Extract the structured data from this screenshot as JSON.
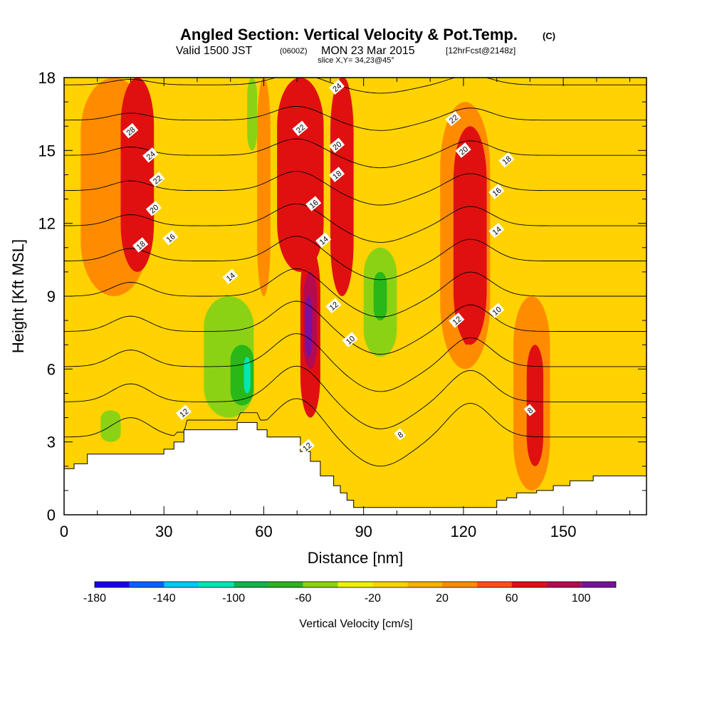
{
  "title": {
    "main": "Angled Section: Vertical Velocity & Pot.Temp.",
    "units_tag": "(C)",
    "valid_prefix": "Valid 1500 JST",
    "valid_z": "(0600Z)",
    "valid_date": "MON 23 Mar 2015",
    "forecast": "[12hrFcst@2148z]",
    "slice": "slice X,Y= 34,23@45°"
  },
  "chart_data": {
    "type": "heatmap",
    "xlabel": "Distance [nm]",
    "ylabel": "Height [Kft MSL]",
    "xlim": [
      0,
      175
    ],
    "ylim": [
      0,
      18
    ],
    "x_ticks": [
      0,
      30,
      60,
      90,
      120,
      150
    ],
    "y_ticks": [
      0,
      3,
      6,
      9,
      12,
      15,
      18
    ],
    "colorbar": {
      "label": "Vertical Velocity [cm/s]",
      "tick_labels": [
        "-180",
        "-140",
        "-100",
        "-60",
        "-20",
        "20",
        "60",
        "100"
      ],
      "bins": [
        -180,
        -160,
        -140,
        -120,
        -100,
        -80,
        -60,
        -40,
        -20,
        0,
        20,
        40,
        60,
        80,
        100,
        120
      ],
      "colors": [
        "#1800e8",
        "#0064ff",
        "#00c8ff",
        "#00e6b4",
        "#10b448",
        "#28b818",
        "#8cd214",
        "#f0f000",
        "#ffd200",
        "#ffb000",
        "#ff8c00",
        "#ff5010",
        "#e01010",
        "#b40a50",
        "#7a10a0"
      ]
    },
    "background_color": "#ffd200",
    "terrain": {
      "x": [
        0,
        3,
        3,
        7,
        7,
        10,
        10,
        30,
        30,
        33,
        33,
        36,
        36,
        52,
        52,
        58,
        58,
        61,
        61,
        71,
        71,
        74,
        74,
        77,
        77,
        81,
        81,
        83,
        83,
        85,
        85,
        87,
        87,
        130,
        130,
        133,
        133,
        136,
        136,
        142,
        142,
        147,
        147,
        152,
        152,
        159,
        159,
        163,
        163,
        175
      ],
      "height_kft": [
        1.9,
        1.9,
        2.1,
        2.1,
        2.5,
        2.5,
        2.5,
        2.5,
        2.7,
        2.7,
        3.0,
        3.0,
        3.5,
        3.5,
        3.8,
        3.8,
        3.5,
        3.5,
        3.2,
        3.2,
        2.6,
        2.6,
        2.2,
        2.2,
        1.6,
        1.6,
        1.2,
        1.2,
        0.9,
        0.9,
        0.6,
        0.6,
        0.3,
        0.3,
        0.6,
        0.6,
        0.7,
        0.7,
        0.9,
        0.9,
        1.0,
        1.0,
        1.2,
        1.2,
        1.4,
        1.4,
        1.6,
        1.6,
        1.6,
        1.6
      ]
    },
    "velocity_cells": [
      {
        "x": [
          5,
          25
        ],
        "y": [
          9,
          18
        ],
        "v": 30
      },
      {
        "x": [
          17,
          27
        ],
        "y": [
          10,
          18
        ],
        "v": 60
      },
      {
        "x": [
          58,
          62
        ],
        "y": [
          9,
          18
        ],
        "v": 30
      },
      {
        "x": [
          64,
          78
        ],
        "y": [
          10,
          18
        ],
        "v": 60
      },
      {
        "x": [
          67,
          75
        ],
        "y": [
          13,
          18
        ],
        "v": 70
      },
      {
        "x": [
          71,
          77
        ],
        "y": [
          4,
          11
        ],
        "v": 60
      },
      {
        "x": [
          72,
          76
        ],
        "y": [
          6,
          10
        ],
        "v": 90
      },
      {
        "x": [
          72.5,
          74.5
        ],
        "y": [
          6.5,
          9
        ],
        "v": 110
      },
      {
        "x": [
          80,
          87
        ],
        "y": [
          9,
          18
        ],
        "v": 60
      },
      {
        "x": [
          82,
          86
        ],
        "y": [
          14,
          18
        ],
        "v": 70
      },
      {
        "x": [
          113,
          128
        ],
        "y": [
          6,
          17
        ],
        "v": 30
      },
      {
        "x": [
          117,
          127
        ],
        "y": [
          7,
          16
        ],
        "v": 60
      },
      {
        "x": [
          119,
          123
        ],
        "y": [
          7,
          12
        ],
        "v": 70
      },
      {
        "x": [
          135,
          146
        ],
        "y": [
          1,
          9
        ],
        "v": 30
      },
      {
        "x": [
          139,
          144
        ],
        "y": [
          2,
          7
        ],
        "v": 60
      },
      {
        "x": [
          42,
          57
        ],
        "y": [
          4,
          9
        ],
        "v": -50
      },
      {
        "x": [
          50,
          57
        ],
        "y": [
          4.5,
          7
        ],
        "v": -70
      },
      {
        "x": [
          54,
          56
        ],
        "y": [
          5,
          6.5
        ],
        "v": -110
      },
      {
        "x": [
          90,
          100
        ],
        "y": [
          6.5,
          11
        ],
        "v": -50
      },
      {
        "x": [
          93,
          97
        ],
        "y": [
          8,
          10
        ],
        "v": -70
      },
      {
        "x": [
          55,
          58
        ],
        "y": [
          15,
          18
        ],
        "v": -50
      },
      {
        "x": [
          11,
          17
        ],
        "y": [
          3,
          4.3
        ],
        "v": -50
      }
    ],
    "isotherm_levels": [
      8,
      10,
      12,
      14,
      16,
      18,
      20,
      22,
      24,
      26,
      28
    ],
    "isotherm_labels": [
      {
        "text": "28",
        "x": 20,
        "y": 15.8
      },
      {
        "text": "24",
        "x": 26,
        "y": 14.8
      },
      {
        "text": "22",
        "x": 28,
        "y": 13.8
      },
      {
        "text": "20",
        "x": 27,
        "y": 12.6
      },
      {
        "text": "18",
        "x": 23,
        "y": 11.1
      },
      {
        "text": "16",
        "x": 32,
        "y": 11.4
      },
      {
        "text": "14",
        "x": 50,
        "y": 9.8
      },
      {
        "text": "12",
        "x": 36,
        "y": 4.2
      },
      {
        "text": "12",
        "x": 73,
        "y": 2.8
      },
      {
        "text": "22",
        "x": 71,
        "y": 15.9
      },
      {
        "text": "24",
        "x": 82,
        "y": 17.6
      },
      {
        "text": "20",
        "x": 82,
        "y": 15.2
      },
      {
        "text": "18",
        "x": 82,
        "y": 14.0
      },
      {
        "text": "16",
        "x": 75,
        "y": 12.8
      },
      {
        "text": "14",
        "x": 78,
        "y": 11.3
      },
      {
        "text": "12",
        "x": 81,
        "y": 8.6
      },
      {
        "text": "10",
        "x": 86,
        "y": 7.2
      },
      {
        "text": "8",
        "x": 101,
        "y": 3.3
      },
      {
        "text": "22",
        "x": 117,
        "y": 16.3
      },
      {
        "text": "20",
        "x": 120,
        "y": 15.0
      },
      {
        "text": "18",
        "x": 133,
        "y": 14.6
      },
      {
        "text": "16",
        "x": 130,
        "y": 13.3
      },
      {
        "text": "14",
        "x": 130,
        "y": 11.7
      },
      {
        "text": "12",
        "x": 118,
        "y": 8.0
      },
      {
        "text": "10",
        "x": 130,
        "y": 8.4
      },
      {
        "text": "8",
        "x": 140,
        "y": 4.3
      }
    ]
  }
}
